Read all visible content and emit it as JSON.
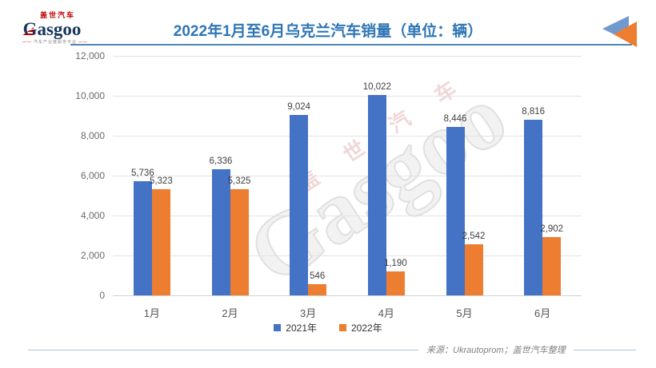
{
  "header": {
    "logo": {
      "cn": "盖世汽车",
      "en": "Gasgoo",
      "tagline": "汽车产业链服务平台"
    },
    "title": "2022年1月至6月乌克兰汽车销量（单位：辆）"
  },
  "chart_data": {
    "type": "bar",
    "title": "2022年1月至6月乌克兰汽车销量（单位：辆）",
    "categories": [
      "1月",
      "2月",
      "3月",
      "4月",
      "5月",
      "6月"
    ],
    "series": [
      {
        "name": "2021年",
        "color": "#4472C4",
        "values": [
          5736,
          6336,
          9024,
          10022,
          8446,
          8816
        ]
      },
      {
        "name": "2022年",
        "color": "#ED7D31",
        "values": [
          5323,
          5325,
          546,
          1190,
          2542,
          2902
        ]
      }
    ],
    "value_labels": [
      [
        "5,736",
        "6,336",
        "9,024",
        "10,022",
        "8,446",
        "8,816"
      ],
      [
        "5,323",
        "5,325",
        "546",
        "1,190",
        "2,542",
        "2,902"
      ]
    ],
    "xlabel": "",
    "ylabel": "",
    "ylim": [
      0,
      12000
    ],
    "ytick_interval": 2000,
    "ytick_labels": [
      "0",
      "2,000",
      "4,000",
      "6,000",
      "8,000",
      "10,000",
      "12,000"
    ],
    "grid": true,
    "legend_position": "bottom"
  },
  "watermark": {
    "cn": "盖世汽车",
    "en": "Gasgoo"
  },
  "footer": {
    "source": "来源：Ukrautoprom；盖世汽车整理"
  },
  "colors": {
    "series_2021": "#4472C4",
    "series_2022": "#ED7D31",
    "title_text": "#2E75B6",
    "title_underline": "#4E86BA",
    "gridline": "#E3E3E3",
    "axis_text": "#6B6B6B",
    "data_label_text": "#3F3F3F",
    "source_text": "#808080",
    "source_line": "#A9C6DE",
    "logo_red": "#C00000",
    "logo_navy": "#17365D",
    "corner_blue": "#7199CE",
    "corner_orange": "#ED7D31"
  }
}
